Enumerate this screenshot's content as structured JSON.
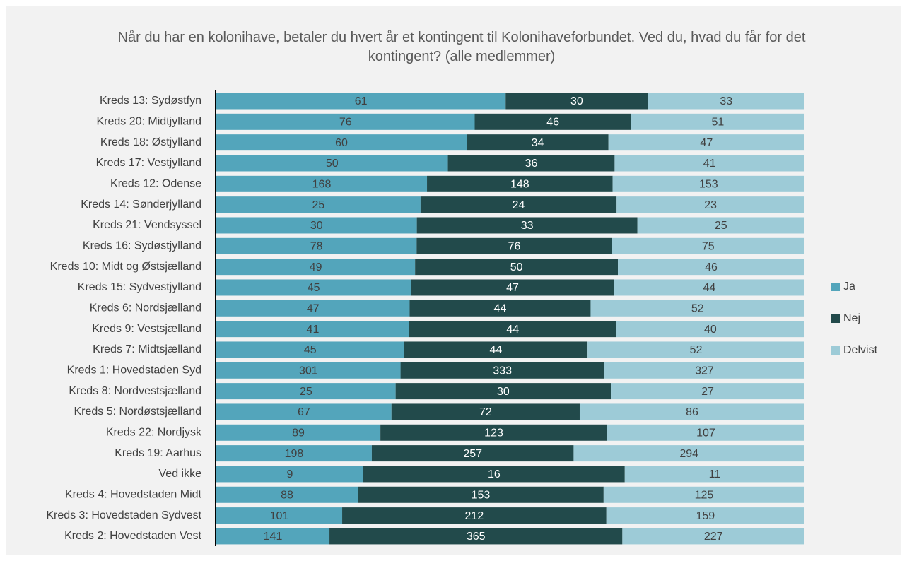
{
  "chart_data": {
    "type": "stacked-bar-100",
    "title": "Når du har en kolonihave, betaler du hvert år et kontingent til Kolonihaveforbundet. Ved du, hvad du får for det kontingent? (alle medlemmer)",
    "categories": [
      "Kreds 13: Sydøstfyn",
      "Kreds 20: Midtjylland",
      "Kreds 18: Østjylland",
      "Kreds 17: Vestjylland",
      "Kreds 12: Odense",
      "Kreds 14: Sønderjylland",
      "Kreds 21: Vendsyssel",
      "Kreds 16: Sydøstjylland",
      "Kreds 10: Midt og Østsjælland",
      "Kreds 15: Sydvestjylland",
      "Kreds 6: Nordsjælland",
      "Kreds 9: Vestsjælland",
      "Kreds 7: Midtsjælland",
      "Kreds 1: Hovedstaden Syd",
      "Kreds 8: Nordvestsjælland",
      "Kreds 5: Nordøstsjælland",
      "Kreds 22: Nordjysk",
      "Kreds 19: Aarhus",
      "Ved ikke",
      "Kreds 4: Hovedstaden Midt",
      "Kreds 3: Hovedstaden Sydvest",
      "Kreds 2: Hovedstaden Vest"
    ],
    "series": [
      {
        "name": "Ja",
        "color": "#53a5bb",
        "label_color": "#404040",
        "values": [
          61,
          76,
          60,
          50,
          168,
          25,
          30,
          78,
          49,
          45,
          47,
          41,
          45,
          301,
          25,
          67,
          89,
          198,
          9,
          88,
          101,
          141
        ]
      },
      {
        "name": "Nej",
        "color": "#224a4b",
        "label_color": "#ffffff",
        "values": [
          30,
          46,
          34,
          36,
          148,
          24,
          33,
          76,
          50,
          47,
          44,
          44,
          44,
          333,
          30,
          72,
          123,
          257,
          16,
          153,
          212,
          365
        ]
      },
      {
        "name": "Delvist",
        "color": "#9dcbd7",
        "label_color": "#404040",
        "values": [
          33,
          51,
          47,
          41,
          153,
          23,
          25,
          75,
          46,
          44,
          52,
          40,
          52,
          327,
          27,
          86,
          107,
          294,
          11,
          125,
          159,
          227
        ]
      }
    ],
    "legend": "right"
  }
}
